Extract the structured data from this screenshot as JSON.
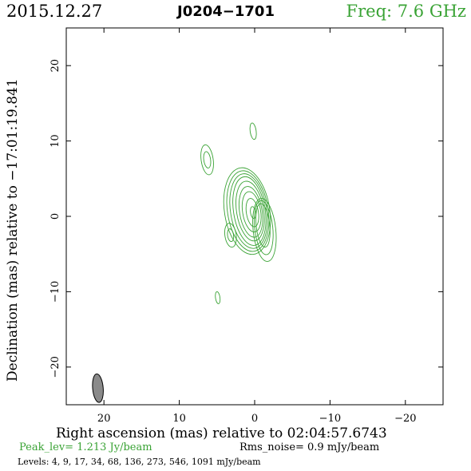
{
  "header": {
    "date": "2015.12.27",
    "source": "J0204−1701",
    "frequency": "Freq: 7.6 GHz"
  },
  "footer": {
    "peak": "Peak_lev=  1.213 Jy/beam",
    "rms": "Rms_noise=  0.9 mJy/beam",
    "levels": "Levels:   4,   9,  17,  34,  68, 136, 273, 546, 1091 mJy/beam"
  },
  "colors": {
    "title_green": "#3aa335",
    "contour_green": "#3aa335",
    "beam_fill": "#8a8a8a"
  },
  "chart_data": {
    "type": "contour",
    "xlabel": "Right ascension (mas) relative to 02:04:57.6743",
    "ylabel": "Declination (mas) relative to −17:01:19.841",
    "xlim": [
      25,
      -25
    ],
    "ylim": [
      -25,
      25
    ],
    "xticks": [
      20,
      10,
      0,
      -10,
      -20
    ],
    "yticks": [
      20,
      10,
      0,
      -10,
      -20
    ],
    "xtick_labels": [
      "20",
      "10",
      "0",
      "−10",
      "−20"
    ],
    "ytick_labels": [
      "20",
      "10",
      "0",
      "−10",
      "−20"
    ],
    "grid": false,
    "peak_jy_per_beam": 1.213,
    "rms_mjy_per_beam": 0.9,
    "levels_mjy_per_beam": [
      4,
      9,
      17,
      34,
      68,
      136,
      273,
      546,
      1091
    ],
    "main_component": {
      "x": 0.2,
      "y": 0.5,
      "contours": [
        {
          "level": 4,
          "rx": 3.0,
          "ry": 5.8,
          "dx": 0.8,
          "dy": 0.2
        },
        {
          "level": 9,
          "rx": 2.7,
          "ry": 5.4,
          "dx": 0.7,
          "dy": 0.2
        },
        {
          "level": 17,
          "rx": 2.4,
          "ry": 5.0,
          "dx": 0.6,
          "dy": 0.2
        },
        {
          "level": 34,
          "rx": 2.1,
          "ry": 4.6,
          "dx": 0.5,
          "dy": 0.2
        },
        {
          "level": 68,
          "rx": 1.8,
          "ry": 4.0,
          "dx": 0.4,
          "dy": 0.2
        },
        {
          "level": 136,
          "rx": 1.5,
          "ry": 3.4,
          "dx": 0.3,
          "dy": 0.1
        },
        {
          "level": 273,
          "rx": 1.2,
          "ry": 2.7,
          "dx": 0.2,
          "dy": 0.1
        },
        {
          "level": 546,
          "rx": 0.8,
          "ry": 1.9,
          "dx": 0.1,
          "dy": 0.0
        },
        {
          "level": 1091,
          "rx": 0.35,
          "ry": 0.8,
          "dx": 0.0,
          "dy": 0.0
        }
      ],
      "tail": [
        {
          "level": 4,
          "x": -1.3,
          "y": -1.8,
          "rx": 1.5,
          "ry": 4.2
        },
        {
          "level": 9,
          "x": -1.2,
          "y": -1.5,
          "rx": 1.2,
          "ry": 3.6
        },
        {
          "level": 17,
          "x": -1.1,
          "y": -1.2,
          "rx": 0.9,
          "ry": 2.9
        }
      ]
    },
    "components": [
      {
        "x": 6.3,
        "y": 7.5,
        "contours": [
          {
            "level": 4,
            "rx": 0.8,
            "ry": 2.0
          },
          {
            "level": 9,
            "rx": 0.45,
            "ry": 1.1
          }
        ]
      },
      {
        "x": 3.2,
        "y": -2.5,
        "contours": [
          {
            "level": 4,
            "rx": 0.75,
            "ry": 1.6
          },
          {
            "level": 9,
            "rx": 0.4,
            "ry": 0.85
          }
        ]
      },
      {
        "x": 0.2,
        "y": 11.3,
        "contours": [
          {
            "level": 4,
            "rx": 0.4,
            "ry": 1.1
          }
        ]
      },
      {
        "x": 4.9,
        "y": -10.8,
        "contours": [
          {
            "level": 4,
            "rx": 0.3,
            "ry": 0.8
          }
        ]
      }
    ],
    "beam": {
      "x": 20.8,
      "y": -22.8,
      "major_mas": 3.8,
      "minor_mas": 1.4,
      "pa_deg": 5
    }
  }
}
